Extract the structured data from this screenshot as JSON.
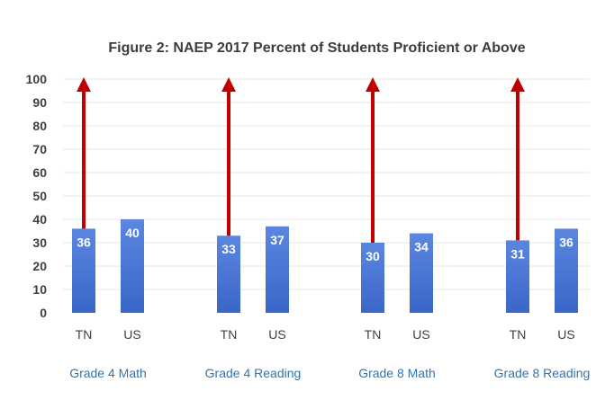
{
  "colors": {
    "bar": "#3a66c9",
    "bar_light": "#5b86e0",
    "arrow": "#c00000",
    "group_label": "#2e74b5"
  },
  "chart_data": {
    "type": "bar",
    "title": "Figure 2:  NAEP 2017 Percent of Students Proficient or Above",
    "ylim": [
      0,
      100
    ],
    "yticks": [
      0,
      10,
      20,
      30,
      40,
      50,
      60,
      70,
      80,
      90,
      100
    ],
    "grid": true,
    "legend": "none",
    "groups": [
      {
        "label": "Grade 4 Math",
        "bars": [
          {
            "category": "TN",
            "value": 36,
            "arrow_to": 100
          },
          {
            "category": "US",
            "value": 40
          }
        ]
      },
      {
        "label": "Grade 4 Reading",
        "bars": [
          {
            "category": "TN",
            "value": 33,
            "arrow_to": 100
          },
          {
            "category": "US",
            "value": 37
          }
        ]
      },
      {
        "label": "Grade 8 Math",
        "bars": [
          {
            "category": "TN",
            "value": 30,
            "arrow_to": 100
          },
          {
            "category": "US",
            "value": 34
          }
        ]
      },
      {
        "label": "Grade 8 Reading",
        "bars": [
          {
            "category": "TN",
            "value": 31,
            "arrow_to": 100
          },
          {
            "category": "US",
            "value": 36
          }
        ]
      }
    ]
  }
}
